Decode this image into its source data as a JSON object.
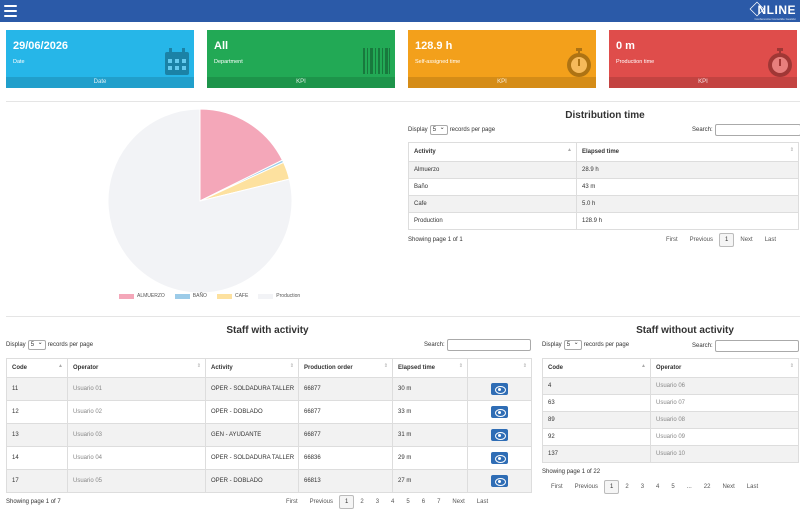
{
  "header": {
    "logo_text": "NLINE",
    "logo_sub": "Conferencia Consolide Gestión"
  },
  "kpis": [
    {
      "value": "29/06/2026",
      "label": "Date",
      "footer": "Date",
      "icon": "calendar-icon",
      "color": "#26b6e8"
    },
    {
      "value": "All",
      "label": "Department",
      "footer": "KPI",
      "icon": "barcode-icon",
      "color": "#22a955"
    },
    {
      "value": "128.9 h",
      "label": "Self-assigned time",
      "footer": "KPI",
      "icon": "stopwatch-icon",
      "color": "#f3a01b"
    },
    {
      "value": "0 m",
      "label": "Production time",
      "footer": "KPI",
      "icon": "stopwatch-icon",
      "color": "#df4d4b"
    }
  ],
  "chart_data": {
    "type": "pie",
    "labels": [
      "ALMUERZO",
      "BAÑO",
      "CAFE",
      "Production"
    ],
    "values": [
      28.9,
      0.72,
      5.0,
      128.9
    ],
    "colors": [
      "#f4a7b9",
      "#9ccbe8",
      "#fde19f",
      "#f2f3f6"
    ]
  },
  "distribution": {
    "title": "Distribution time",
    "display_pre": "Display",
    "display_value": "5",
    "display_post": "records per page",
    "search_label": "Search:",
    "columns": [
      "Activity",
      "Elapsed time"
    ],
    "rows": [
      [
        "Almuerzo",
        "28.9 h"
      ],
      [
        "Baño",
        "43 m"
      ],
      [
        "Cafe",
        "5.0 h"
      ],
      [
        "Production",
        "128.9 h"
      ]
    ],
    "info": "Showing page 1 of 1",
    "pager": [
      "First",
      "Previous",
      "1",
      "Next",
      "Last"
    ]
  },
  "staff_with": {
    "title": "Staff with activity",
    "display_pre": "Display",
    "display_value": "5",
    "display_post": "records per page",
    "search_label": "Search:",
    "columns": [
      "Code",
      "Operator",
      "Activity",
      "Production order",
      "Elapsed time",
      ""
    ],
    "rows": [
      [
        "11",
        "Usuario 01",
        "OPER - SOLDADURA TALLER",
        "66877",
        "30 m"
      ],
      [
        "12",
        "Usuario 02",
        "OPER - DOBLADO",
        "66877",
        "33 m"
      ],
      [
        "13",
        "Usuario 03",
        "GEN - AYUDANTE",
        "66877",
        "31 m"
      ],
      [
        "14",
        "Usuario 04",
        "OPER - SOLDADURA TALLER",
        "66836",
        "29 m"
      ],
      [
        "17",
        "Usuario 05",
        "OPER - DOBLADO",
        "66813",
        "27 m"
      ]
    ],
    "info": "Showing page 1 of 7",
    "pager": [
      "First",
      "Previous",
      "1",
      "2",
      "3",
      "4",
      "5",
      "6",
      "7",
      "Next",
      "Last"
    ]
  },
  "staff_without": {
    "title": "Staff without activity",
    "display_pre": "Display",
    "display_value": "5",
    "display_post": "records per page",
    "search_label": "Search:",
    "columns": [
      "Code",
      "Operator"
    ],
    "rows": [
      [
        "4",
        "Usuario 06"
      ],
      [
        "63",
        "Usuario 07"
      ],
      [
        "89",
        "Usuario 08"
      ],
      [
        "92",
        "Usuario 09"
      ],
      [
        "137",
        "Usuario 10"
      ]
    ],
    "info": "Showing page 1 of 22",
    "pager": [
      "First",
      "Previous",
      "1",
      "2",
      "3",
      "4",
      "5",
      "...",
      "22",
      "Next",
      "Last"
    ]
  }
}
